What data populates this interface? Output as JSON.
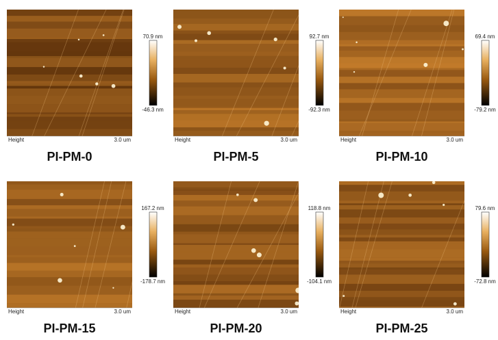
{
  "panels": [
    {
      "caption": "PI-PM-0",
      "max": "70.9 nm",
      "min": "-46.3 nm",
      "channel": "Height",
      "scale": "3.0 um"
    },
    {
      "caption": "PI-PM-5",
      "max": "92.7 nm",
      "min": "-92.3 nm",
      "channel": "Height",
      "scale": "3.0 um"
    },
    {
      "caption": "PI-PM-10",
      "max": "69.4 nm",
      "min": "-79.2 nm",
      "channel": "Height",
      "scale": "3.0 um"
    },
    {
      "caption": "PI-PM-15",
      "max": "167.2 nm",
      "min": "-178.7 nm",
      "channel": "Height",
      "scale": "3.0 um"
    },
    {
      "caption": "PI-PM-20",
      "max": "118.8 nm",
      "min": "-104.1 nm",
      "channel": "Height",
      "scale": "3.0 um"
    },
    {
      "caption": "PI-PM-25",
      "max": "79.6 nm",
      "min": "-72.8 nm",
      "channel": "Height",
      "scale": "3.0 um"
    }
  ]
}
